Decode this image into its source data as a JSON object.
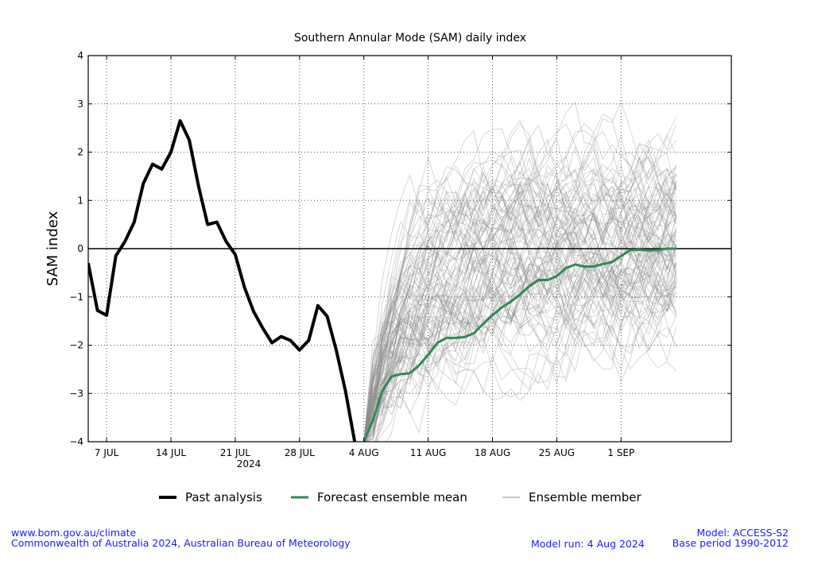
{
  "chart_data": {
    "type": "line",
    "title": "Southern Annular Mode (SAM) daily index",
    "ylabel": "SAM index",
    "xlabel": "2024",
    "ylim": [
      -4,
      4
    ],
    "xlim": [
      0,
      70
    ],
    "yticks": [
      -4,
      -3,
      -2,
      -1,
      0,
      1,
      2,
      3,
      4
    ],
    "yticklabels": [
      "−4",
      "−3",
      "−2",
      "−1",
      "0",
      "1",
      "2",
      "3",
      "4"
    ],
    "xticks": [
      {
        "day": 2,
        "label": "7 JUL"
      },
      {
        "day": 9,
        "label": "14 JUL"
      },
      {
        "day": 16,
        "label": "21 JUL"
      },
      {
        "day": 23,
        "label": "28 JUL"
      },
      {
        "day": 30,
        "label": "4 AUG"
      },
      {
        "day": 37,
        "label": "11 AUG"
      },
      {
        "day": 44,
        "label": "18 AUG"
      },
      {
        "day": 51,
        "label": "25 AUG"
      },
      {
        "day": 58,
        "label": "1 SEP"
      }
    ],
    "year_label": "2024",
    "grid": true,
    "zero_line": true,
    "series": [
      {
        "name": "Past analysis",
        "color": "#000000",
        "x": [
          0,
          1,
          2,
          3,
          4,
          5,
          6,
          7,
          8,
          9,
          10,
          11,
          12,
          13,
          14,
          15,
          16,
          17,
          18,
          19,
          20,
          21,
          22,
          23,
          24,
          25,
          26,
          27,
          28,
          29
        ],
        "values": [
          -0.3,
          -1.28,
          -1.38,
          -0.15,
          0.15,
          0.55,
          1.35,
          1.75,
          1.65,
          2.0,
          2.65,
          2.25,
          1.3,
          0.5,
          0.55,
          0.15,
          -0.12,
          -0.8,
          -1.3,
          -1.65,
          -1.95,
          -1.82,
          -1.9,
          -2.1,
          -1.9,
          -1.18,
          -1.4,
          -2.1,
          -2.95,
          -4.0
        ]
      },
      {
        "name": "Forecast ensemble mean",
        "color": "#2e8b57",
        "x": [
          30,
          31,
          32,
          33,
          34,
          35,
          36,
          37,
          38,
          39,
          40,
          41,
          42,
          43,
          44,
          45,
          46,
          47,
          48,
          49,
          50,
          51,
          52,
          53,
          54,
          55,
          56,
          57,
          58,
          59,
          60,
          61,
          62,
          63,
          64
        ],
        "values": [
          -4.0,
          -3.55,
          -2.95,
          -2.65,
          -2.6,
          -2.58,
          -2.42,
          -2.2,
          -1.95,
          -1.85,
          -1.85,
          -1.83,
          -1.75,
          -1.55,
          -1.38,
          -1.22,
          -1.1,
          -0.95,
          -0.78,
          -0.65,
          -0.65,
          -0.57,
          -0.4,
          -0.33,
          -0.37,
          -0.37,
          -0.32,
          -0.28,
          -0.15,
          -0.03,
          -0.02,
          -0.04,
          -0.03,
          0.0,
          0.0
        ]
      }
    ],
    "ensemble": {
      "name": "Ensemble member",
      "color": "#8c8c8c",
      "start_day": 30,
      "end_day": 64,
      "member_count": 99,
      "start_value": -4.0
    },
    "legend": {
      "placement": "bottom-center",
      "items": [
        {
          "label": "Past analysis",
          "color": "#000000",
          "style": "thick"
        },
        {
          "label": "Forecast ensemble mean",
          "color": "#2e8b57",
          "style": "medium"
        },
        {
          "label": "Ensemble member",
          "color": "#8c8c8c",
          "style": "thin"
        }
      ]
    }
  },
  "footer": {
    "url": "www.bom.gov.au/climate",
    "copyright": "Commonwealth of Australia 2024, Australian Bureau of Meteorology",
    "model": "Model: ACCESS-S2",
    "model_run": "Model run: 4 Aug 2024",
    "base_period": "Base period 1990-2012"
  }
}
